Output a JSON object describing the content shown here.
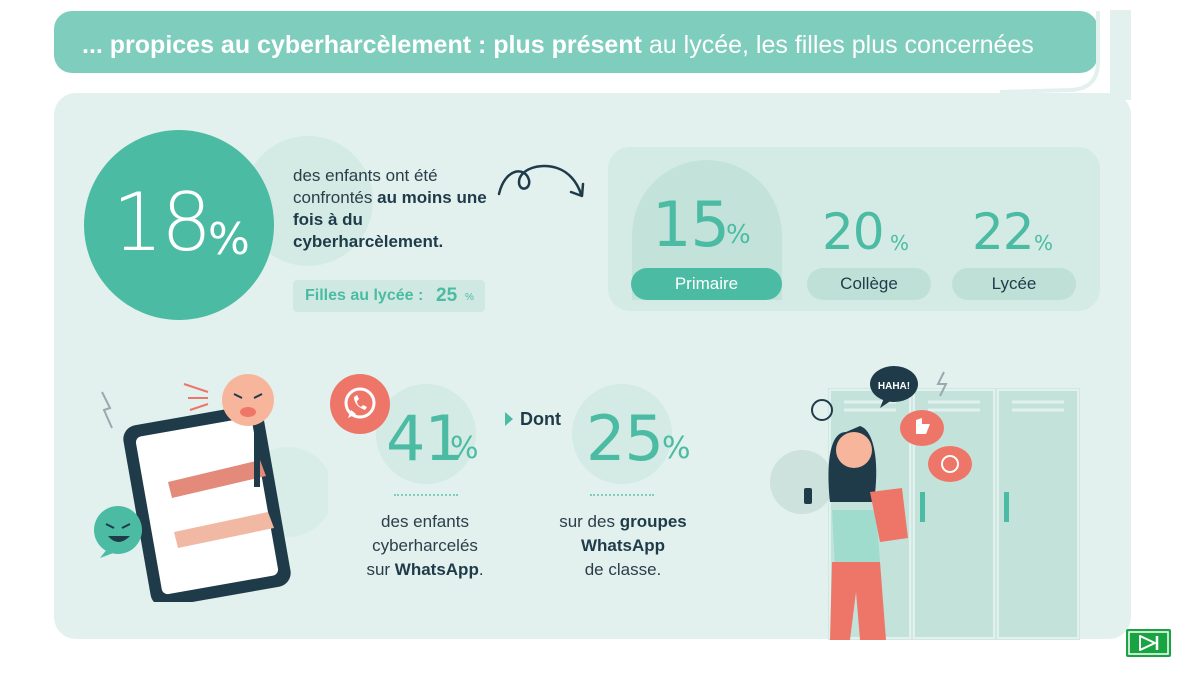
{
  "header": {
    "title_part1": "... propices au cyberharcèlement : ",
    "title_part2": "plus présent",
    "title_part3": " au lycée, les filles plus concernées"
  },
  "overall": {
    "value": "18",
    "unit": "%",
    "text_plain": "des enfants ont été confrontés ",
    "text_bold": "au moins une fois à du cyberharcèlement.",
    "girls_label": "Filles au lycée :",
    "girls_value": "25",
    "girls_unit": "%"
  },
  "levels": [
    {
      "value": "15",
      "unit": "%",
      "label": "Primaire",
      "active": true
    },
    {
      "value": "20",
      "unit": "%",
      "label": "Collège",
      "active": false
    },
    {
      "value": "22",
      "unit": "%",
      "label": "Lycée",
      "active": false
    }
  ],
  "whatsapp": {
    "stat1_value": "41",
    "stat1_unit": "%",
    "stat1_line1": "des enfants",
    "stat1_line2": "cyberharcelés",
    "stat1_line3_plain": "sur ",
    "stat1_line3_bold": "WhatsApp",
    "stat1_line3_end": ".",
    "dont_label": "Dont",
    "stat2_value": "25",
    "stat2_unit": "%",
    "stat2_line1_plain": "sur des ",
    "stat2_line1_bold": "groupes",
    "stat2_line2_bold": "WhatsApp",
    "stat2_line3": "de classe."
  },
  "illustration": {
    "speech_text": "HAHA!"
  },
  "colors": {
    "accent": "#4bbba3",
    "header": "#7fcdbd",
    "panel": "#e2f1ed",
    "coral": "#ee7669",
    "dark": "#1f3b4a",
    "next": "#18a541"
  },
  "icons": {
    "whatsapp": "whatsapp-icon",
    "arrow": "curved-arrow-icon",
    "next": "next-slide-icon"
  }
}
